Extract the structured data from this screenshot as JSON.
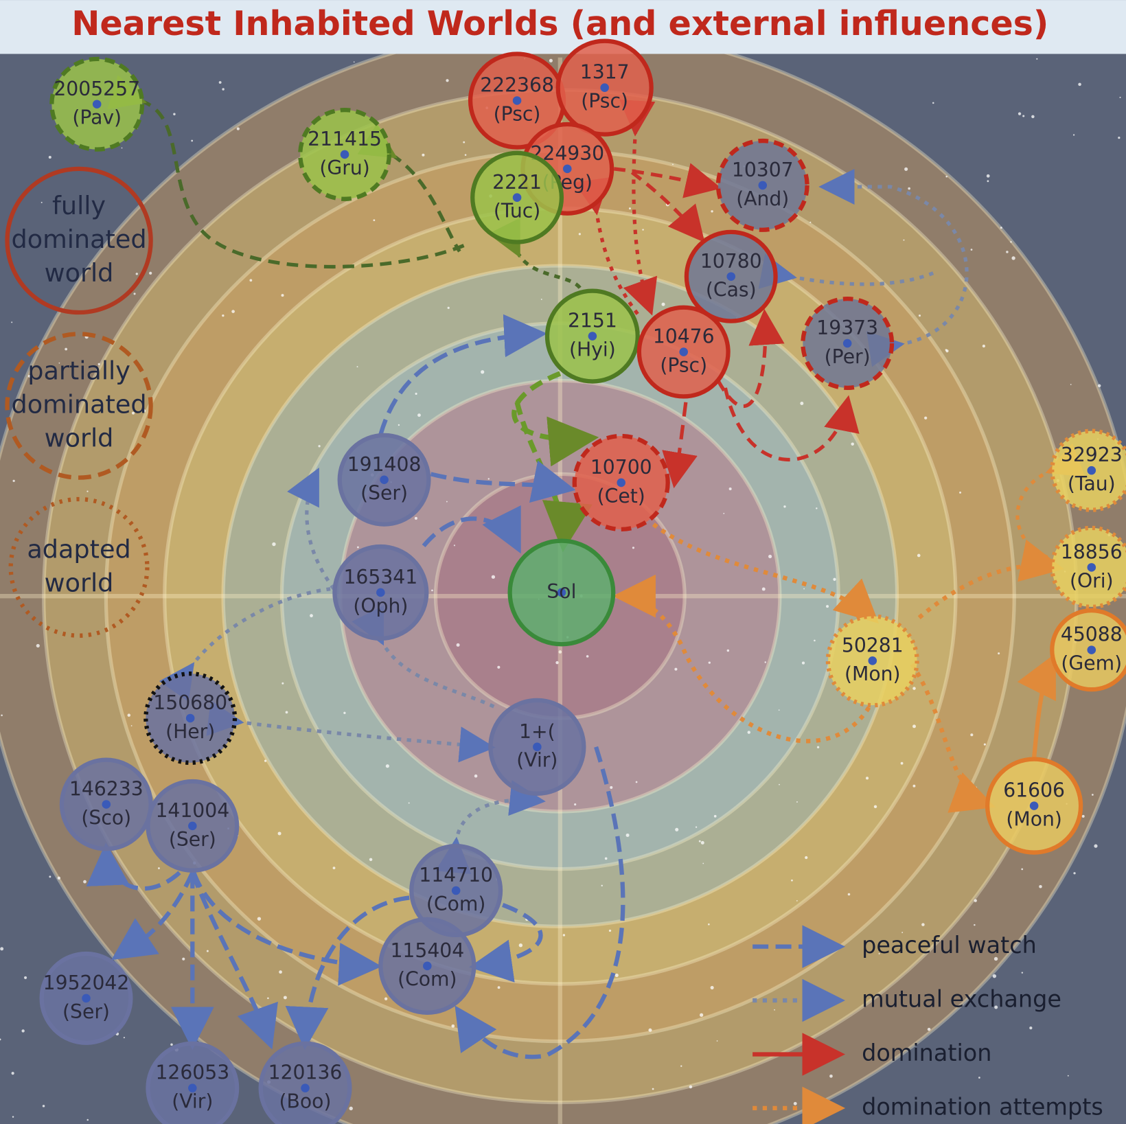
{
  "title": "Nearest Inhabited Worlds (and external influences)",
  "nodes": [
    {
      "lines": [
        "2005257",
        "(Pav)"
      ]
    },
    {
      "lines": [
        "211415",
        "(Gru)"
      ]
    },
    {
      "lines": [
        "222368",
        "(Psc)"
      ]
    },
    {
      "lines": [
        "1317",
        "(Psc)"
      ]
    },
    {
      "lines": [
        "224930",
        "(Peg)"
      ]
    },
    {
      "lines": [
        "2221",
        "(Tuc)"
      ]
    },
    {
      "lines": [
        "10307",
        "(And)"
      ]
    },
    {
      "lines": [
        "10780",
        "(Cas)"
      ]
    },
    {
      "lines": [
        "2151",
        "(Hyi)"
      ]
    },
    {
      "lines": [
        "10476",
        "(Psc)"
      ]
    },
    {
      "lines": [
        "19373",
        "(Per)"
      ]
    },
    {
      "lines": [
        "10700",
        "(Cet)"
      ]
    },
    {
      "lines": [
        "191408",
        "(Ser)"
      ]
    },
    {
      "lines": [
        "165341",
        "(Oph)"
      ]
    },
    {
      "lines": [
        "Sol"
      ]
    },
    {
      "lines": [
        "150680",
        "(Her)"
      ]
    },
    {
      "lines": [
        "1+(",
        "(Vir)"
      ]
    },
    {
      "lines": [
        "146233",
        "(Sco)"
      ]
    },
    {
      "lines": [
        "141004",
        "(Ser)"
      ]
    },
    {
      "lines": [
        "114710",
        "(Com)"
      ]
    },
    {
      "lines": [
        "115404",
        "(Com)"
      ]
    },
    {
      "lines": [
        "1952042",
        "(Ser)"
      ]
    },
    {
      "lines": [
        "126053",
        "(Vir)"
      ]
    },
    {
      "lines": [
        "120136",
        "(Boo)"
      ]
    },
    {
      "lines": [
        "32923",
        "(Tau)"
      ]
    },
    {
      "lines": [
        "18856",
        "(Ori)"
      ]
    },
    {
      "lines": [
        "50281",
        "(Mon)"
      ]
    },
    {
      "lines": [
        "45088",
        "(Gem)"
      ]
    },
    {
      "lines": [
        "61606",
        "(Mon)"
      ]
    }
  ],
  "legend": {
    "worlds": [
      [
        "fully",
        "dominated",
        "world"
      ],
      [
        "partially",
        "dominated",
        "world"
      ],
      [
        "adapted",
        "world"
      ]
    ],
    "edges": [
      "peaceful watch",
      "mutual exchange",
      "domination",
      "domination attempts"
    ]
  }
}
